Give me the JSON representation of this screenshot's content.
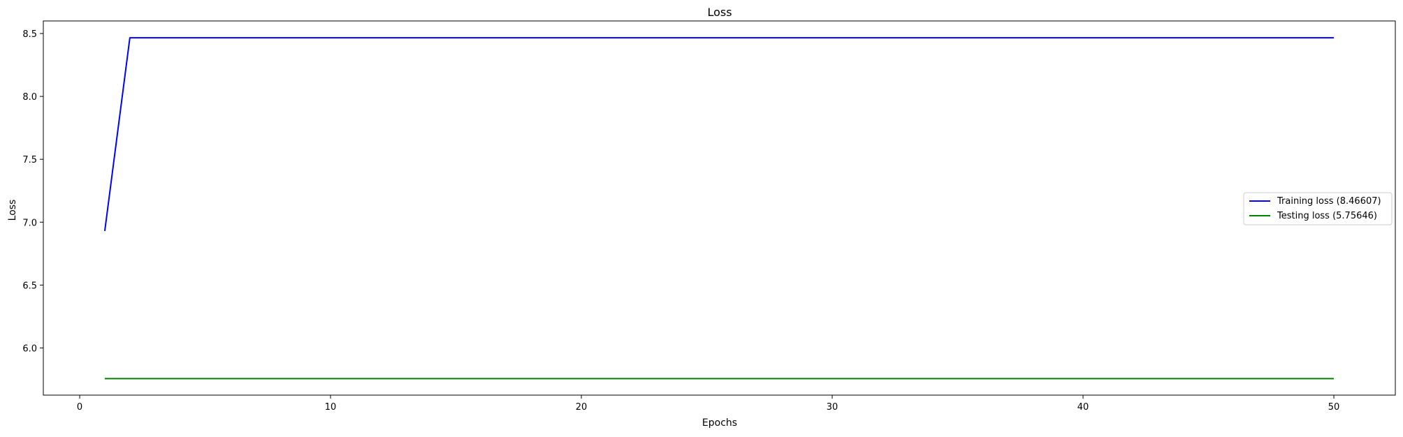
{
  "chart_data": {
    "type": "line",
    "title": "Loss",
    "xlabel": "Epochs",
    "ylabel": "Loss",
    "xlim": [
      -1.45,
      52.45
    ],
    "ylim": [
      5.625,
      8.6
    ],
    "x_ticks": [
      0,
      10,
      20,
      30,
      40,
      50
    ],
    "x_tick_labels": [
      "0",
      "10",
      "20",
      "30",
      "40",
      "50"
    ],
    "y_ticks": [
      6.0,
      6.5,
      7.0,
      7.5,
      8.0,
      8.5
    ],
    "y_tick_labels": [
      "6.0",
      "6.5",
      "7.0",
      "7.5",
      "8.0",
      "8.5"
    ],
    "grid": false,
    "legend_position": "center-right",
    "series": [
      {
        "name": "Training loss (8.46607)",
        "color": "#0000ff",
        "x": [
          1,
          2,
          50
        ],
        "y": [
          6.93,
          8.46607,
          8.46607
        ]
      },
      {
        "name": "Testing loss (5.75646)",
        "color": "#008000",
        "x": [
          1,
          50
        ],
        "y": [
          5.75646,
          5.75646
        ]
      }
    ]
  }
}
